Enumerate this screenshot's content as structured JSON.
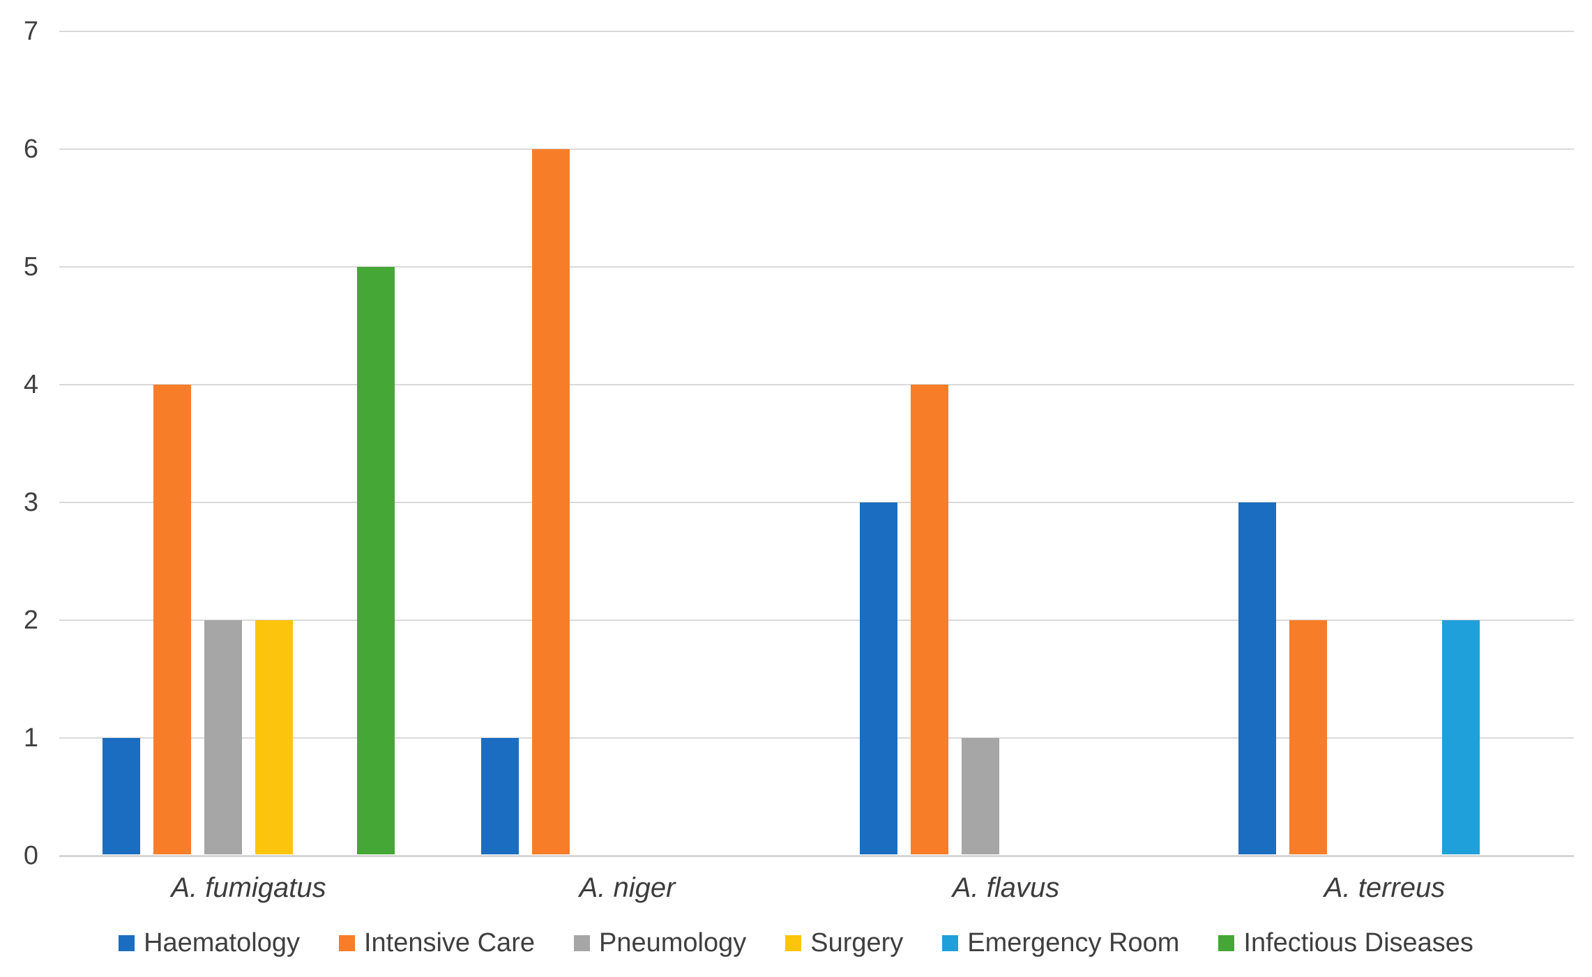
{
  "chart_data": {
    "type": "bar",
    "title": "",
    "categories": [
      "A. fumigatus",
      "A. niger",
      "A. flavus",
      "A. terreus"
    ],
    "series": [
      {
        "name": "Haematology",
        "color": "#1b6dc1",
        "values": [
          1,
          1,
          3,
          3
        ]
      },
      {
        "name": "Intensive Care",
        "color": "#f87d28",
        "values": [
          4,
          6,
          4,
          2
        ]
      },
      {
        "name": "Pneumology",
        "color": "#a6a6a6",
        "values": [
          2,
          0,
          1,
          0
        ]
      },
      {
        "name": "Surgery",
        "color": "#fdc40d",
        "values": [
          2,
          0,
          0,
          0
        ]
      },
      {
        "name": "Emergency Room",
        "color": "#20a0da",
        "values": [
          0,
          0,
          0,
          2
        ]
      },
      {
        "name": "Infectious Diseases",
        "color": "#45a735",
        "values": [
          5,
          0,
          0,
          0
        ]
      }
    ],
    "xlabel": "",
    "ylabel": "",
    "ylim": [
      0,
      7
    ],
    "yticks": [
      0,
      1,
      2,
      3,
      4,
      5,
      6,
      7
    ],
    "grid": true,
    "gridline_color": "#d9d9d9",
    "axis_text_color": "#404040",
    "legend_position": "bottom"
  }
}
